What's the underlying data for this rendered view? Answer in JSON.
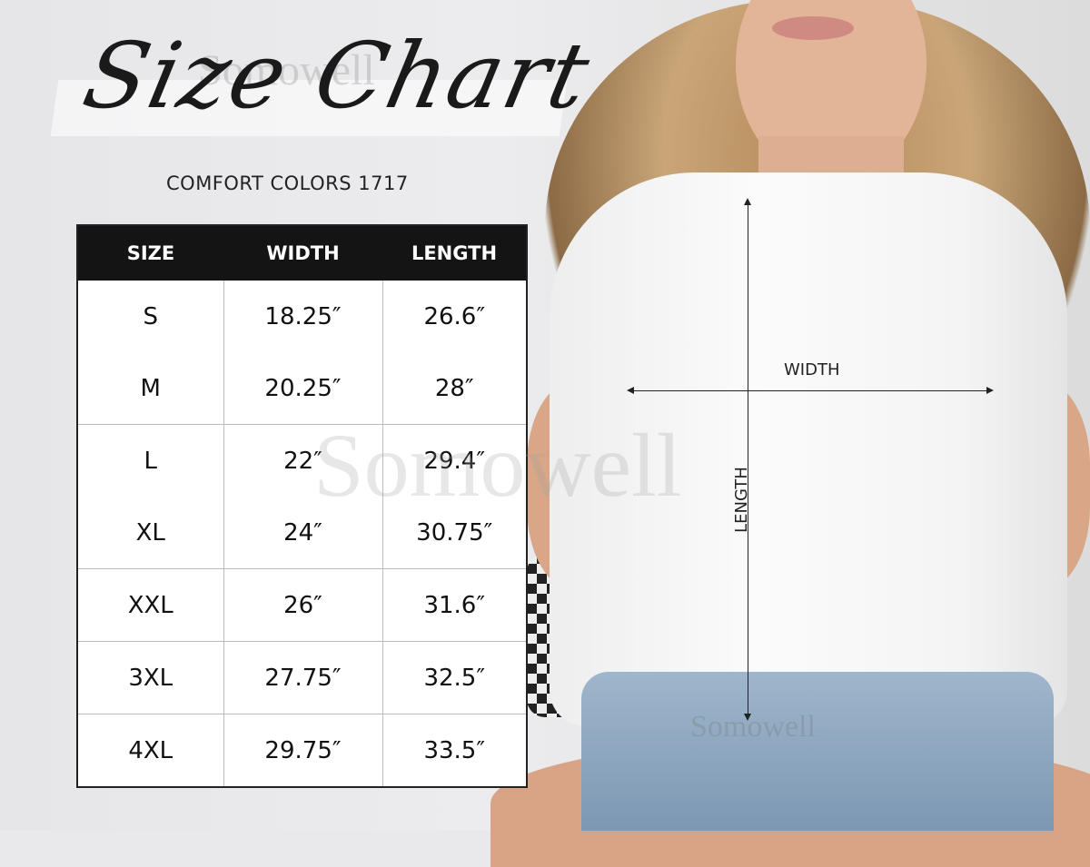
{
  "title": "Size Chart",
  "subtitle": "COMFORT COLORS 1717",
  "watermark": "Somowell",
  "table": {
    "headers": [
      "SIZE",
      "WIDTH",
      "LENGTH"
    ],
    "rows": [
      [
        "S",
        "18.25″",
        "26.6″"
      ],
      [
        "M",
        "20.25″",
        "28″"
      ],
      [
        "L",
        "22″",
        "29.4″"
      ],
      [
        "XL",
        "24″",
        "30.75″"
      ],
      [
        "XXL",
        "26″",
        "31.6″"
      ],
      [
        "3XL",
        "27.75″",
        "32.5″"
      ],
      [
        "4XL",
        "29.75″",
        "33.5″"
      ]
    ]
  },
  "diagram": {
    "width_label": "WIDTH",
    "length_label": "LENGTH"
  },
  "colors": {
    "header_bg": "#141414",
    "header_text": "#ffffff",
    "text": "#111111"
  }
}
